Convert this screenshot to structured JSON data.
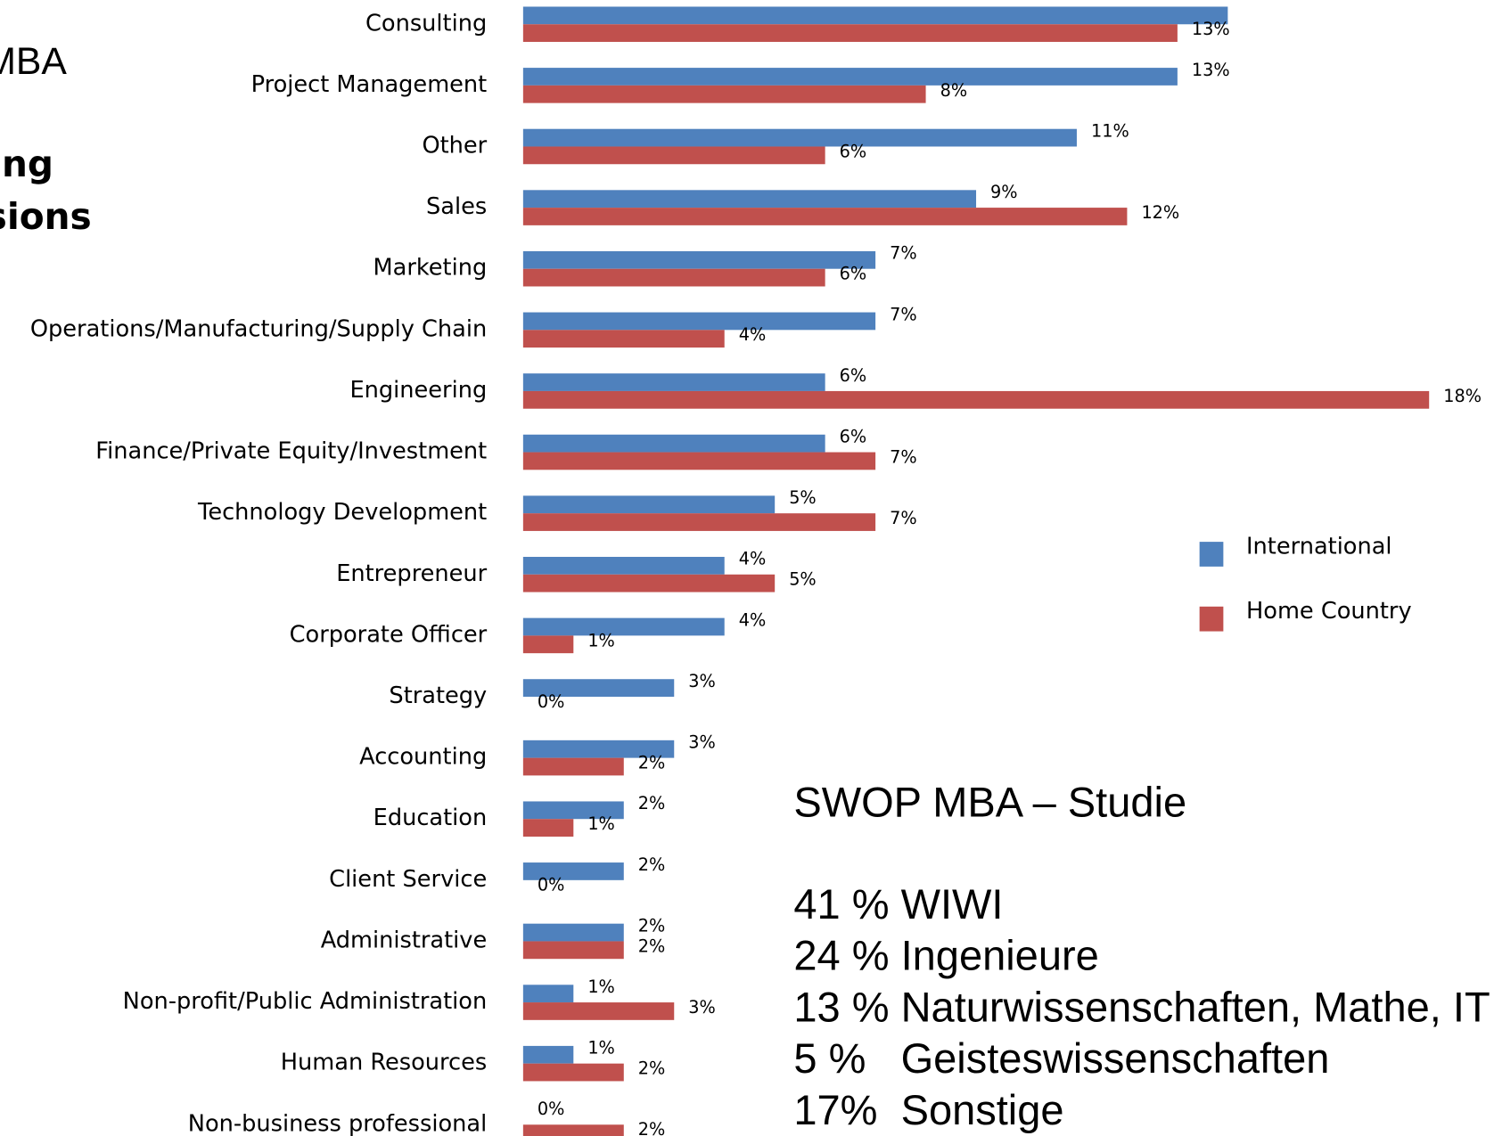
{
  "title_fragments": [
    "MBA",
    "ing",
    "sions"
  ],
  "chart_data": {
    "type": "bar",
    "orientation": "horizontal",
    "categories": [
      "Consulting",
      "Project Management",
      "Other",
      "Sales",
      "Marketing",
      "Operations/Manufacturing/Supply Chain",
      "Engineering",
      "Finance/Private Equity/Investment",
      "Technology Development",
      "Entrepreneur",
      "Corporate Officer",
      "Strategy",
      "Accounting",
      "Education",
      "Client Service",
      "Administrative",
      "Non-profit/Public Administration",
      "Human Resources",
      "Non-business professional"
    ],
    "xlim": [
      0,
      18
    ],
    "legend": "right",
    "series": [
      {
        "name": "International",
        "color": "#4f81bd",
        "values": [
          14,
          13,
          11,
          9,
          7,
          7,
          6,
          6,
          5,
          4,
          4,
          3,
          3,
          2,
          2,
          2,
          1,
          1,
          0
        ],
        "value_labels": [
          null,
          "13%",
          "11%",
          "9%",
          "7%",
          "7%",
          "6%",
          "6%",
          "5%",
          "4%",
          "4%",
          "3%",
          "3%",
          "2%",
          "2%",
          "2%",
          "1%",
          "1%",
          "0%"
        ]
      },
      {
        "name": "Home Country",
        "color": "#c0504d",
        "values": [
          13,
          8,
          6,
          12,
          6,
          4,
          18,
          7,
          7,
          5,
          1,
          0,
          2,
          1,
          0,
          2,
          3,
          2,
          2
        ],
        "value_labels": [
          "13%",
          "8%",
          "6%",
          "12%",
          "6%",
          "4%",
          "18%",
          "7%",
          "7%",
          "5%",
          "1%",
          "0%",
          "2%",
          "1%",
          "0%",
          "2%",
          "3%",
          "2%",
          "2%"
        ]
      }
    ]
  },
  "study": {
    "title": "SWOP MBA – Studie",
    "lines": [
      "41 % WIWI",
      "24 % Ingenieure",
      "13 % Naturwissenschaften, Mathe, IT",
      "5 %   Geisteswissenschaften",
      "17%  Sonstige"
    ]
  }
}
